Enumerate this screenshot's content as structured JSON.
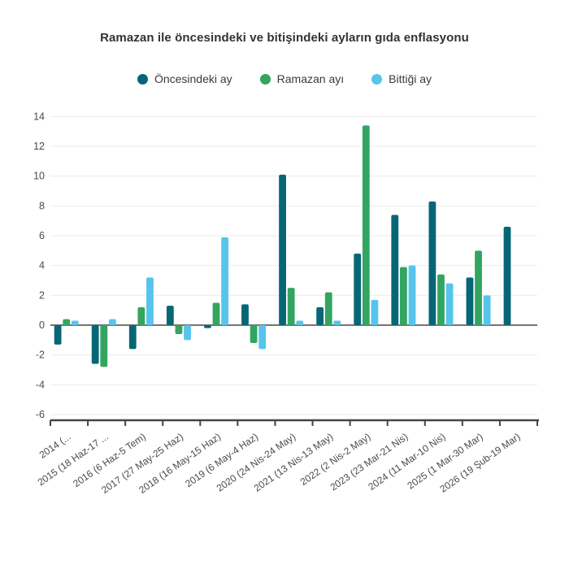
{
  "colors": {
    "series_previous_month": "#066676",
    "series_ramadan_month": "#33A561",
    "series_ending_month": "#57C4EB",
    "gridline": "#ebebeb",
    "zero_line": "#747474",
    "axis_line": "#444444",
    "tick_label": "#4a4a4a",
    "title_text": "#333333",
    "background": "#ffffff"
  },
  "chart_data": {
    "type": "bar",
    "title": "Ramazan ile öncesindeki ve bitişindeki ayların gıda enflasyonu",
    "xlabel": "",
    "ylabel": "",
    "ylim": [
      -6,
      14
    ],
    "yticks": [
      14,
      12,
      10,
      8,
      6,
      4,
      2,
      0,
      -2,
      -4,
      -6
    ],
    "grid": true,
    "legend_position": "top",
    "categories": [
      "2014 (...",
      "2015 (18 Haz-17 ...",
      "2016 (6 Haz-5 Tem)",
      "2017 (27 May-25 Haz)",
      "2018 (16 May-15 Haz)",
      "2019 (6 May-4 Haz)",
      "2020 (24 Nis-24 May)",
      "2021 (13 Nis-13 May)",
      "2022 (2 Nis-2 May)",
      "2023 (23 Mar-21 Nis)",
      "2024 (11 Mar-10 Nis)",
      "2025 (1 Mar-30 Mar)",
      "2026 (19 Şub-19 Mar)"
    ],
    "series": [
      {
        "name": "Öncesindeki ay",
        "color": "#066676",
        "values": [
          -1.3,
          -2.6,
          -1.6,
          1.3,
          -0.2,
          1.4,
          10.1,
          1.2,
          4.8,
          7.4,
          8.3,
          3.2,
          6.6
        ]
      },
      {
        "name": "Ramazan ayı",
        "color": "#33A561",
        "values": [
          0.4,
          -2.8,
          1.2,
          -0.6,
          1.5,
          -1.2,
          2.5,
          2.2,
          13.4,
          3.9,
          3.4,
          5.0,
          null
        ]
      },
      {
        "name": "Bittiği ay",
        "color": "#57C4EB",
        "values": [
          0.3,
          0.4,
          3.2,
          -1.0,
          5.9,
          -1.6,
          0.3,
          0.3,
          1.7,
          4.0,
          2.8,
          2.0,
          null
        ]
      }
    ]
  }
}
